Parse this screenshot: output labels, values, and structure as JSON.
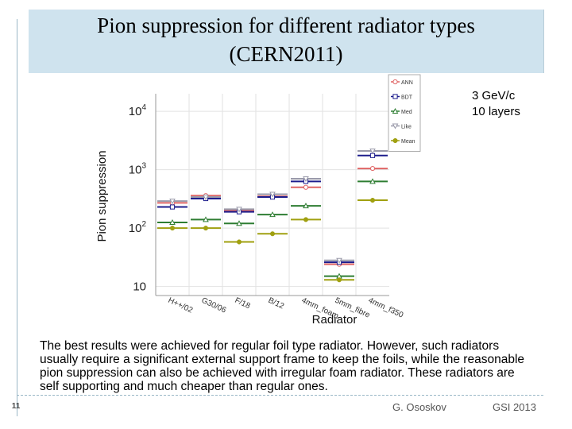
{
  "slide": {
    "title_line1": "Pion suppression for different radiator types",
    "title_line2": "(CERN2011)",
    "conditions_line1": "3 GeV/c",
    "conditions_line2": "10 layers",
    "body_text": "The best results were achieved for regular foil type radiator.  However, such radiators usually require a significant external support frame to keep the foils, while the reasonable pion suppression can also be achieved with irregular foam radiator.  These radiators are self supporting and much cheaper than regular ones.",
    "slide_number": "11",
    "author": "G. Ososkov",
    "event": "GSI 2013"
  },
  "chart_data": {
    "type": "line",
    "xlabel": "Radiator",
    "ylabel": "Pion suppression",
    "yscale": "log",
    "ylim": [
      7,
      20000
    ],
    "ytick_labels": [
      {
        "value": 10,
        "label": "10",
        "exp": ""
      },
      {
        "value": 100,
        "label": "10",
        "exp": "2"
      },
      {
        "value": 1000,
        "label": "10",
        "exp": "3"
      },
      {
        "value": 10000,
        "label": "10",
        "exp": "4"
      }
    ],
    "categories": [
      "H++/02",
      "G30/06",
      "F/18",
      "B/12",
      "4mm_foam",
      "5mm_fibre",
      "4mm_f350"
    ],
    "grid": true,
    "legend_position": "top-right",
    "series": [
      {
        "name": "ANN",
        "color": "#e06666",
        "marker": "circle",
        "values": [
          270,
          360,
          200,
          350,
          500,
          24,
          1050
        ]
      },
      {
        "name": "BDT",
        "color": "#1c1c8c",
        "marker": "square",
        "values": [
          230,
          320,
          190,
          340,
          630,
          26,
          1750
        ]
      },
      {
        "name": "Med",
        "color": "#2e7d32",
        "marker": "triangle",
        "values": [
          125,
          140,
          120,
          170,
          240,
          15,
          630
        ]
      },
      {
        "name": "Like",
        "color": "#9a9aaa",
        "marker": "triangle-down",
        "values": [
          290,
          340,
          210,
          380,
          700,
          28,
          2100
        ]
      },
      {
        "name": "Mean",
        "color": "#a0a010",
        "marker": "dot",
        "values": [
          100,
          100,
          58,
          80,
          140,
          13,
          300
        ]
      }
    ]
  }
}
